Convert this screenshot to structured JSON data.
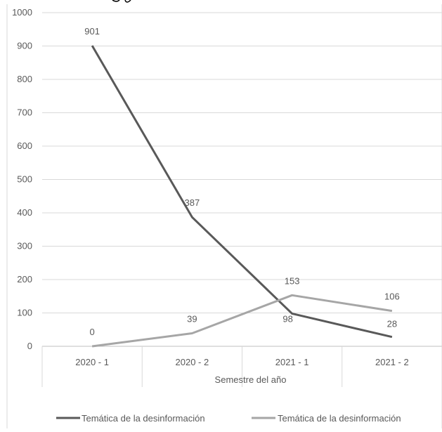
{
  "chart_data": {
    "type": "line",
    "categories": [
      "2020 - 1",
      "2020 - 2",
      "2021 - 1",
      "2021 - 2"
    ],
    "series": [
      {
        "name": "Temática de la desinformación",
        "values": [
          901,
          387,
          98,
          28
        ],
        "color": "#595959"
      },
      {
        "name": "Temática de la desinformación",
        "values": [
          0,
          39,
          153,
          106
        ],
        "color": "#a6a6a6"
      }
    ],
    "xlabel": "Semestre del año",
    "ylabel": "",
    "ylim": [
      0,
      1000
    ],
    "yticks": [
      0,
      100,
      200,
      300,
      400,
      500,
      600,
      700,
      800,
      900,
      1000
    ],
    "grid": true,
    "legend": "bottom",
    "data_labels": true
  }
}
